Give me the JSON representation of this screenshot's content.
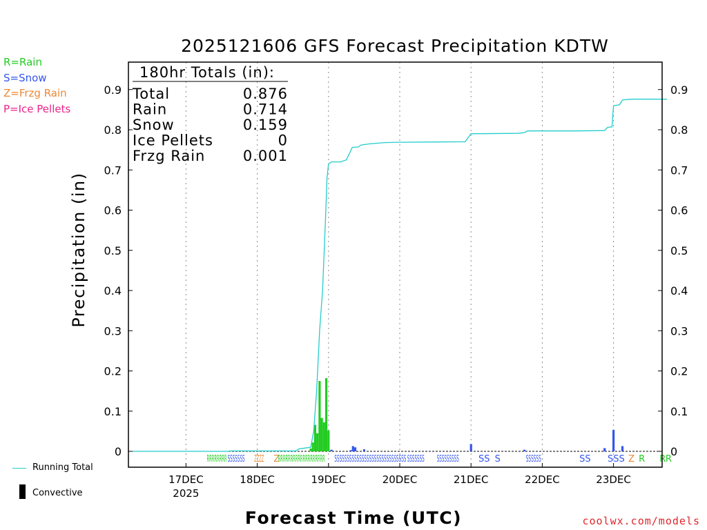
{
  "chart_data": {
    "type": "bar",
    "title": "2025121606 GFS Forecast Precipitation KDTW",
    "xlabel": "Forecast Time (UTC)",
    "ylabel": "Precipitation (in)",
    "ylim": [
      0,
      0.97
    ],
    "yticks": [
      "0",
      "0.1",
      "0.2",
      "0.3",
      "0.4",
      "0.5",
      "0.6",
      "0.7",
      "0.8",
      "0.9"
    ],
    "xlim_hours": [
      0,
      180
    ],
    "x_unit": "forecast hours from 2025-12-16 06Z",
    "xticks": [
      {
        "hour": 18,
        "label": "17DEC",
        "sublabel": "2025"
      },
      {
        "hour": 42,
        "label": "18DEC",
        "sublabel": ""
      },
      {
        "hour": 66,
        "label": "19DEC",
        "sublabel": ""
      },
      {
        "hour": 90,
        "label": "20DEC",
        "sublabel": ""
      },
      {
        "hour": 114,
        "label": "21DEC",
        "sublabel": ""
      },
      {
        "hour": 138,
        "label": "22DEC",
        "sublabel": ""
      },
      {
        "hour": 162,
        "label": "23DEC",
        "sublabel": ""
      }
    ],
    "grid": "dotted vertical at each day",
    "legend": [
      {
        "code": "R",
        "label": "R=Rain",
        "color": "#22cc22"
      },
      {
        "code": "S",
        "label": "S=Snow",
        "color": "#3355ee"
      },
      {
        "code": "Z",
        "label": "Z=Frzg Rain",
        "color": "#ee8833"
      },
      {
        "code": "P",
        "label": "P=Ice Pellets",
        "color": "#ee2288"
      }
    ],
    "bottom_legend": [
      {
        "label": "Running Total",
        "color": "#22cccc"
      },
      {
        "label": "Convective",
        "color": "#000000"
      }
    ],
    "totals_box": {
      "title": "180hr Totals (in):",
      "rows": [
        {
          "label": "Total",
          "value": "0.876"
        },
        {
          "label": "Rain",
          "value": "0.714"
        },
        {
          "label": "Snow",
          "value": "0.159"
        },
        {
          "label": "Ice Pellets",
          "value": "0"
        },
        {
          "label": "Frzg Rain",
          "value": "0.001"
        }
      ]
    },
    "bars": [
      {
        "hour": 60.0,
        "value": 0.007,
        "type": "R"
      },
      {
        "hour": 60.75,
        "value": 0.022,
        "type": "R"
      },
      {
        "hour": 61.5,
        "value": 0.066,
        "type": "R"
      },
      {
        "hour": 62.25,
        "value": 0.045,
        "type": "R"
      },
      {
        "hour": 63.0,
        "value": 0.175,
        "type": "R"
      },
      {
        "hour": 63.75,
        "value": 0.083,
        "type": "R"
      },
      {
        "hour": 64.5,
        "value": 0.072,
        "type": "R"
      },
      {
        "hour": 65.25,
        "value": 0.182,
        "type": "R"
      },
      {
        "hour": 66.0,
        "value": 0.052,
        "type": "R"
      },
      {
        "hour": 67.0,
        "value": 0.004,
        "type": "S"
      },
      {
        "hour": 73.5,
        "value": 0.003,
        "type": "S"
      },
      {
        "hour": 74.25,
        "value": 0.013,
        "type": "S"
      },
      {
        "hour": 75.0,
        "value": 0.01,
        "type": "S"
      },
      {
        "hour": 78.0,
        "value": 0.005,
        "type": "S"
      },
      {
        "hour": 114.0,
        "value": 0.018,
        "type": "S"
      },
      {
        "hour": 132.0,
        "value": 0.004,
        "type": "S"
      },
      {
        "hour": 159.0,
        "value": 0.008,
        "type": "S"
      },
      {
        "hour": 162.0,
        "value": 0.053,
        "type": "S"
      },
      {
        "hour": 165.0,
        "value": 0.013,
        "type": "S"
      }
    ],
    "running_total": [
      [
        0,
        0
      ],
      [
        32,
        0
      ],
      [
        33,
        0.001
      ],
      [
        40,
        0.001
      ],
      [
        55,
        0.001
      ],
      [
        56,
        0.006
      ],
      [
        58,
        0.008
      ],
      [
        60,
        0.01
      ],
      [
        61,
        0.05
      ],
      [
        62,
        0.15
      ],
      [
        63,
        0.3
      ],
      [
        64,
        0.4
      ],
      [
        65,
        0.58
      ],
      [
        65.5,
        0.68
      ],
      [
        66,
        0.715
      ],
      [
        67,
        0.72
      ],
      [
        70,
        0.72
      ],
      [
        72,
        0.725
      ],
      [
        73,
        0.74
      ],
      [
        74,
        0.756
      ],
      [
        76,
        0.757
      ],
      [
        77,
        0.762
      ],
      [
        80,
        0.765
      ],
      [
        85,
        0.768
      ],
      [
        90,
        0.769
      ],
      [
        110,
        0.77
      ],
      [
        112,
        0.77
      ],
      [
        113,
        0.78
      ],
      [
        114,
        0.79
      ],
      [
        130,
        0.791
      ],
      [
        132,
        0.793
      ],
      [
        133,
        0.797
      ],
      [
        150,
        0.797
      ],
      [
        159,
        0.798
      ],
      [
        160,
        0.806
      ],
      [
        161.5,
        0.807
      ],
      [
        162,
        0.86
      ],
      [
        164,
        0.862
      ],
      [
        165,
        0.874
      ],
      [
        168,
        0.876
      ],
      [
        180,
        0.876
      ]
    ],
    "type_markers": [
      {
        "hour": 25.0,
        "text": "RRRRRRRR",
        "type": "R"
      },
      {
        "hour": 32.0,
        "text": "SSSSSSS",
        "type": "S"
      },
      {
        "hour": 41.0,
        "text": "ZZZZ",
        "type": "Z"
      },
      {
        "hour": 47.5,
        "text": "Z",
        "type": "Z"
      },
      {
        "hour": 49.0,
        "text": "RRRRRRRRRRRRRRRRRRR",
        "type": "R"
      },
      {
        "hour": 68.0,
        "text": "SSSSSSSSSSSSSSSSSSSSSSSSSSSSS",
        "type": "S"
      },
      {
        "hour": 92.5,
        "text": "SSSSSSS",
        "type": "S"
      },
      {
        "hour": 102.5,
        "text": "SSSSSSSSS",
        "type": "S"
      },
      {
        "hour": 116.5,
        "text": "SS",
        "type": "S"
      },
      {
        "hour": 122.0,
        "text": "S",
        "type": "S"
      },
      {
        "hour": 132.5,
        "text": "SSSSSS",
        "type": "S"
      },
      {
        "hour": 150.5,
        "text": "SS",
        "type": "S"
      },
      {
        "hour": 160.0,
        "text": "SSS",
        "type": "S"
      },
      {
        "hour": 167.0,
        "text": "Z",
        "type": "Z"
      },
      {
        "hour": 170.5,
        "text": "R",
        "type": "R"
      },
      {
        "hour": 177.5,
        "text": "R",
        "type": "R"
      },
      {
        "hour": 179.5,
        "text": "R",
        "type": "R"
      }
    ]
  },
  "colors": {
    "rain": "#22cc22",
    "snow": "#3355ee",
    "frzg": "#ee8833",
    "ice": "#ee2288",
    "running_total": "#22cccc",
    "watermark": "#e0252b"
  },
  "watermark": "coolwx.com/models"
}
